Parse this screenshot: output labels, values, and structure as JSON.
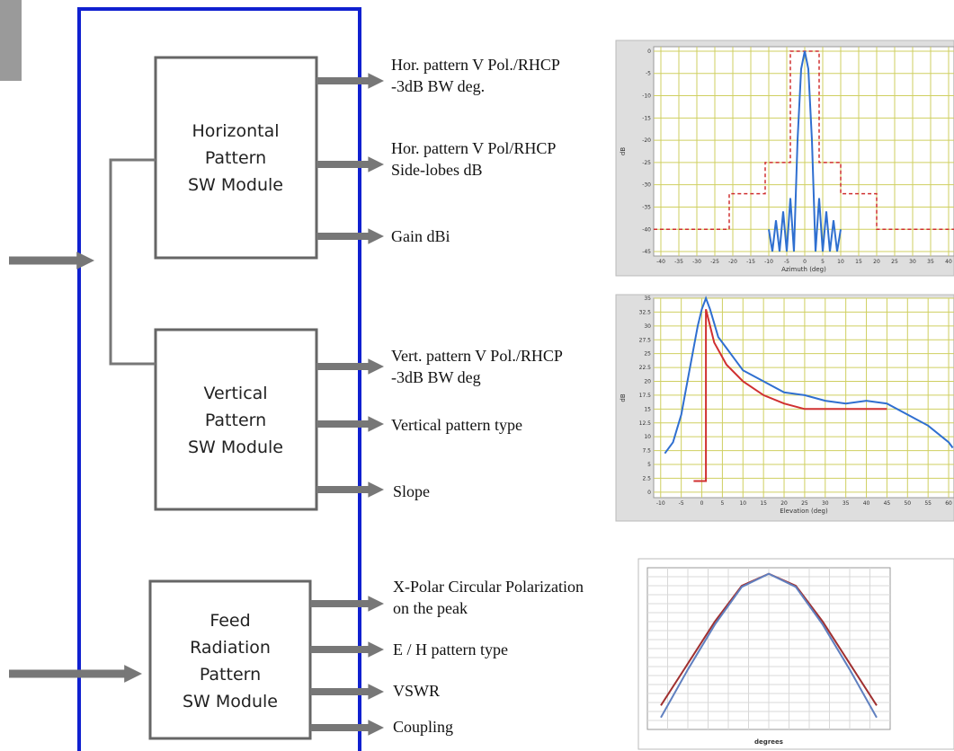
{
  "blocks": [
    {
      "lines": [
        "Horizontal",
        "Pattern",
        "SW Module"
      ]
    },
    {
      "lines": [
        "Vertical",
        "Pattern",
        "SW Module"
      ]
    },
    {
      "lines": [
        "Feed",
        "Radiation",
        "Pattern",
        "SW Module"
      ]
    }
  ],
  "outputs": [
    {
      "lines": [
        "Hor. pattern V Pol./RHCP",
        "-3dB BW deg."
      ]
    },
    {
      "lines": [
        "Hor. pattern V Pol/RHCP",
        "Side-lobes dB"
      ]
    },
    {
      "lines": [
        "Gain dBi"
      ]
    },
    {
      "lines": [
        "Vert. pattern V Pol./RHCP",
        "-3dB BW deg"
      ]
    },
    {
      "lines": [
        "Vertical pattern type"
      ]
    },
    {
      "lines": [
        "Slope"
      ]
    },
    {
      "lines": [
        "X-Polar Circular Polarization",
        "on the peak"
      ]
    },
    {
      "lines": [
        "E / H pattern type"
      ]
    },
    {
      "lines": [
        "VSWR"
      ]
    },
    {
      "lines": [
        "Coupling"
      ]
    }
  ],
  "charts": [
    {
      "type": "line",
      "x_label": "Azimuth (deg)",
      "y_label": "dB",
      "xlim": [
        -42,
        41.5
      ],
      "ylim": [
        -46,
        1
      ],
      "xticks": [
        -40,
        -35,
        -30,
        -25,
        -20,
        -15,
        -10,
        -5,
        0,
        5,
        10,
        15,
        20,
        25,
        30,
        35,
        40
      ],
      "yticks": [
        0,
        -5,
        -10,
        -15,
        -20,
        -25,
        -30,
        -35,
        -40,
        -45
      ],
      "series": [
        {
          "color": "#d03030",
          "dashed": true,
          "x": [
            -42,
            -21,
            -21,
            -11,
            -11,
            -4,
            -4,
            4,
            4,
            10,
            10,
            20,
            20,
            41.5
          ],
          "values": [
            -40,
            -40,
            -32,
            -32,
            -25,
            -25,
            0,
            0,
            -25,
            -25,
            -32,
            -32,
            -40,
            -40
          ]
        },
        {
          "color": "#2f6fd0",
          "dashed": false,
          "x": [
            -10,
            -9,
            -8,
            -7,
            -6,
            -5,
            -4,
            -3,
            -2,
            -1,
            0,
            1,
            2,
            3,
            4,
            5,
            6,
            7,
            8,
            9,
            10
          ],
          "values": [
            -40,
            -45,
            -38,
            -45,
            -36,
            -45,
            -33,
            -45,
            -20,
            -4,
            0,
            -4,
            -20,
            -45,
            -33,
            -45,
            -36,
            -45,
            -38,
            -45,
            -40
          ]
        }
      ]
    },
    {
      "type": "line",
      "x_label": "Elevation (deg)",
      "y_label": "dB",
      "xlim": [
        -11.7,
        61.3
      ],
      "ylim": [
        -1,
        35
      ],
      "xticks": [
        -10,
        -5,
        0,
        5,
        10,
        15,
        20,
        25,
        30,
        35,
        40,
        45,
        50,
        55,
        60
      ],
      "yticks": [
        0,
        2.5,
        5,
        7.5,
        10,
        12.5,
        15,
        17.5,
        20,
        22.5,
        25,
        27.5,
        30,
        32.5,
        35
      ],
      "series": [
        {
          "color": "#d03030",
          "dashed": false,
          "x": [
            -2,
            1,
            1,
            3,
            6,
            10,
            15,
            20,
            25,
            30,
            35,
            40,
            45
          ],
          "values": [
            2,
            2,
            33,
            27,
            23,
            20,
            17.5,
            16,
            15,
            15,
            15,
            15,
            15
          ]
        },
        {
          "color": "#2f6fd0",
          "dashed": false,
          "x": [
            -9,
            -7,
            -5,
            -3,
            -1,
            0,
            1,
            2,
            4,
            6,
            8,
            10,
            15,
            20,
            25,
            30,
            35,
            40,
            45,
            50,
            55,
            60,
            61
          ],
          "values": [
            7,
            9,
            14,
            22,
            30,
            33,
            35,
            33,
            28,
            26,
            24,
            22,
            20,
            18,
            17.5,
            16.5,
            16,
            16.5,
            16,
            14,
            12,
            9,
            8
          ]
        }
      ]
    },
    {
      "type": "line",
      "x_label": "degrees",
      "xlim": [
        -90,
        90
      ],
      "ylim": [
        -26,
        1
      ],
      "series": [
        {
          "color": "#a03030",
          "dashed": false,
          "x": [
            -80,
            -60,
            -40,
            -20,
            0,
            20,
            40,
            60,
            80
          ],
          "values": [
            -22,
            -15,
            -8,
            -2,
            0,
            -2,
            -8,
            -15,
            -22
          ]
        },
        {
          "color": "#6080c0",
          "dashed": false,
          "x": [
            -80,
            -60,
            -40,
            -20,
            0,
            20,
            40,
            60,
            80
          ],
          "values": [
            -24,
            -16,
            -8.5,
            -2.2,
            0,
            -2.2,
            -8.5,
            -16,
            -24
          ]
        }
      ]
    }
  ]
}
